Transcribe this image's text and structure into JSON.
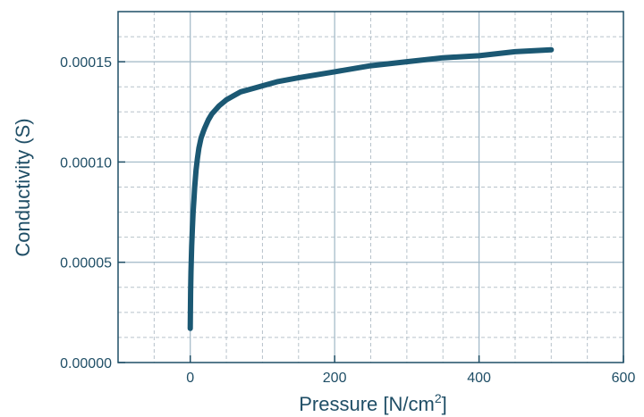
{
  "chart_data": {
    "type": "line",
    "title": "",
    "xlabel": "Pressure [N/cm",
    "xlabel_superscript": "2",
    "xlabel_suffix": "]",
    "ylabel": "Conductivity (S)",
    "xlim": [
      -100,
      600
    ],
    "ylim": [
      0,
      0.000175
    ],
    "xticks": [
      0,
      200,
      400,
      600
    ],
    "xtick_labels": [
      "0",
      "200",
      "400",
      "600"
    ],
    "yticks": [
      0,
      5e-05,
      0.0001,
      0.00015
    ],
    "ytick_labels": [
      "0.00000",
      "0.00005",
      "0.00010",
      "0.00015"
    ],
    "grid": true,
    "colors": {
      "series": "#1b5873",
      "axis": "#1f4e66",
      "major_grid": "#9fb7c6",
      "minor_grid": "#b7c2ca"
    },
    "series": [
      {
        "x": [
          0,
          0.5,
          1,
          2,
          3,
          4,
          5,
          6,
          8,
          10,
          12,
          15,
          18,
          20,
          25,
          30,
          35,
          40,
          50,
          60,
          70,
          80,
          100,
          120,
          150,
          200,
          250,
          300,
          350,
          400,
          450,
          500
        ],
        "y": [
          1.7e-05,
          3.5e-05,
          4.5e-05,
          5.8e-05,
          6.7e-05,
          7.5e-05,
          8.1e-05,
          8.7e-05,
          9.6e-05,
          0.000102,
          0.000107,
          0.000112,
          0.000115,
          0.000117,
          0.000121,
          0.000124,
          0.000126,
          0.000128,
          0.000131,
          0.000133,
          0.000135,
          0.000136,
          0.000138,
          0.00014,
          0.000142,
          0.000145,
          0.000148,
          0.00015,
          0.000152,
          0.000153,
          0.000155,
          0.000156
        ]
      }
    ]
  }
}
